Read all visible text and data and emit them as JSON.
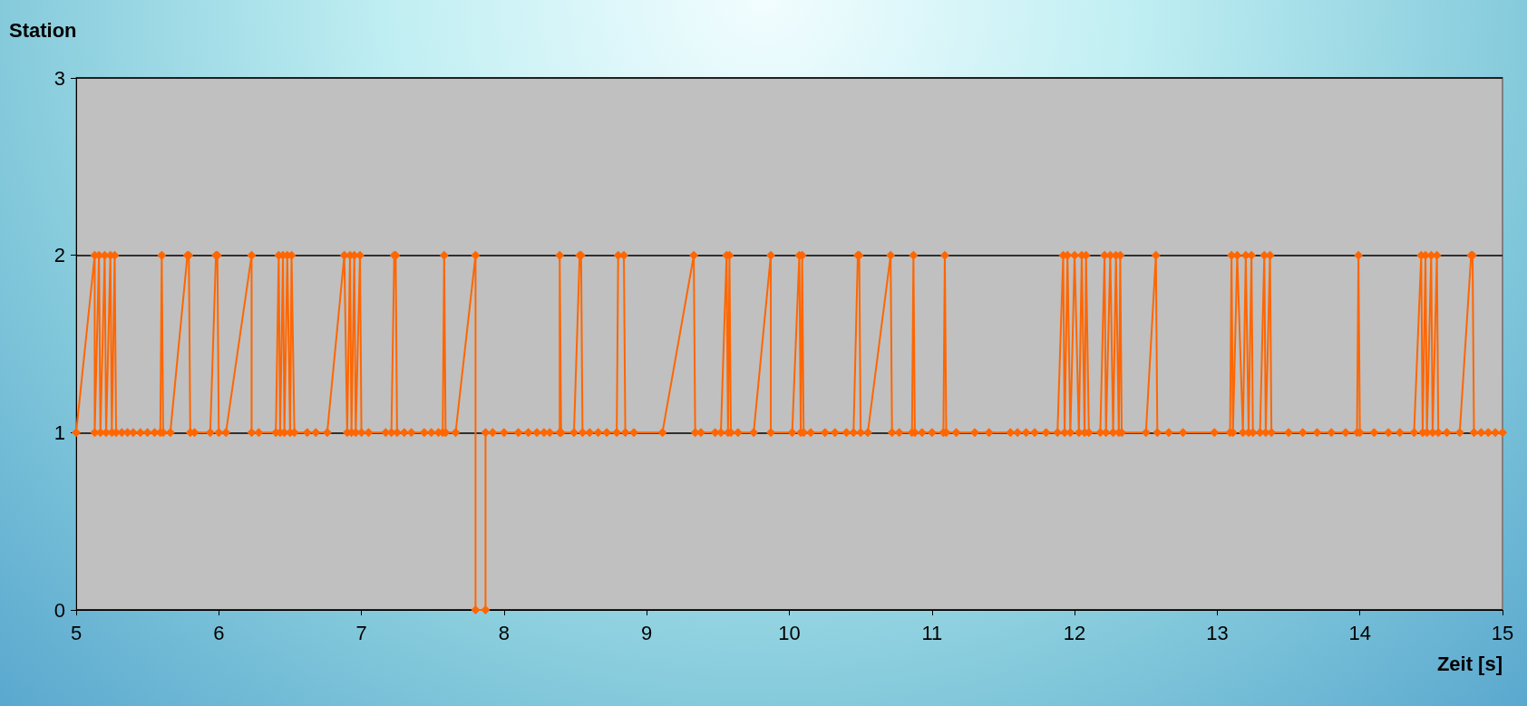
{
  "chart_data": {
    "type": "line",
    "xlabel": "Zeit [s]",
    "ylabel": "Station",
    "color": "#ff6600",
    "marker": "diamond",
    "grid": "y",
    "xlim": [
      5,
      15
    ],
    "xticks": [
      5,
      6,
      7,
      8,
      9,
      10,
      11,
      12,
      13,
      14,
      15
    ],
    "ylim": [
      0,
      3
    ],
    "yticks": [
      0,
      1,
      2,
      3
    ],
    "x": [
      5.0,
      5.13,
      5.13,
      5.16,
      5.17,
      5.2,
      5.21,
      5.24,
      5.25,
      5.27,
      5.28,
      5.32,
      5.36,
      5.4,
      5.45,
      5.5,
      5.55,
      5.59,
      5.6,
      5.61,
      5.66,
      5.78,
      5.79,
      5.8,
      5.83,
      5.94,
      5.98,
      5.99,
      6.0,
      6.05,
      6.23,
      6.23,
      6.28,
      6.4,
      6.42,
      6.43,
      6.45,
      6.46,
      6.48,
      6.5,
      6.51,
      6.53,
      6.62,
      6.68,
      6.76,
      6.88,
      6.9,
      6.92,
      6.93,
      6.95,
      6.96,
      6.99,
      7.0,
      7.05,
      7.17,
      7.21,
      7.23,
      7.24,
      7.25,
      7.3,
      7.35,
      7.44,
      7.49,
      7.54,
      7.57,
      7.58,
      7.59,
      7.66,
      7.8,
      7.8,
      7.87,
      7.87,
      7.92,
      8.0,
      8.1,
      8.17,
      8.23,
      8.28,
      8.32,
      8.39,
      8.39,
      8.4,
      8.49,
      8.53,
      8.54,
      8.55,
      8.6,
      8.66,
      8.72,
      8.79,
      8.8,
      8.84,
      8.85,
      8.91,
      9.11,
      9.33,
      9.34,
      9.38,
      9.48,
      9.52,
      9.56,
      9.57,
      9.58,
      9.59,
      9.64,
      9.75,
      9.87,
      9.87,
      10.02,
      10.07,
      10.08,
      10.09,
      10.1,
      10.15,
      10.25,
      10.32,
      10.4,
      10.45,
      10.48,
      10.49,
      10.5,
      10.55,
      10.71,
      10.72,
      10.77,
      10.86,
      10.87,
      10.88,
      10.93,
      11.0,
      11.08,
      11.09,
      11.1,
      11.17,
      11.3,
      11.4,
      11.55,
      11.6,
      11.66,
      11.72,
      11.8,
      11.88,
      11.92,
      11.93,
      11.95,
      11.97,
      12.0,
      12.03,
      12.05,
      12.07,
      12.08,
      12.1,
      12.18,
      12.21,
      12.22,
      12.25,
      12.27,
      12.29,
      12.31,
      12.32,
      12.33,
      12.5,
      12.57,
      12.58,
      12.66,
      12.76,
      12.98,
      13.09,
      13.1,
      13.11,
      13.14,
      13.18,
      13.2,
      13.22,
      13.24,
      13.25,
      13.3,
      13.33,
      13.34,
      13.37,
      13.38,
      13.5,
      13.6,
      13.7,
      13.8,
      13.9,
      13.98,
      13.99,
      14.0,
      14.1,
      14.2,
      14.28,
      14.38,
      14.43,
      14.44,
      14.46,
      14.47,
      14.5,
      14.51,
      14.54,
      14.55,
      14.61,
      14.7,
      14.78,
      14.79,
      14.8,
      14.85,
      14.9,
      14.95,
      15.0
    ],
    "values": [
      1,
      2,
      1,
      2,
      1,
      2,
      1,
      2,
      1,
      2,
      1,
      1,
      1,
      1,
      1,
      1,
      1,
      1,
      2,
      1,
      1,
      2,
      2,
      1,
      1,
      1,
      2,
      2,
      1,
      1,
      2,
      1,
      1,
      1,
      2,
      1,
      2,
      1,
      2,
      1,
      2,
      1,
      1,
      1,
      1,
      2,
      1,
      2,
      1,
      2,
      1,
      2,
      1,
      1,
      1,
      1,
      2,
      2,
      1,
      1,
      1,
      1,
      1,
      1,
      1,
      2,
      1,
      1,
      2,
      0,
      0,
      1,
      1,
      1,
      1,
      1,
      1,
      1,
      1,
      1,
      2,
      1,
      1,
      2,
      2,
      1,
      1,
      1,
      1,
      1,
      2,
      2,
      1,
      1,
      1,
      2,
      1,
      1,
      1,
      1,
      2,
      1,
      2,
      1,
      1,
      1,
      2,
      1,
      1,
      2,
      1,
      2,
      1,
      1,
      1,
      1,
      1,
      1,
      2,
      2,
      1,
      1,
      2,
      1,
      1,
      1,
      2,
      1,
      1,
      1,
      1,
      2,
      1,
      1,
      1,
      1,
      1,
      1,
      1,
      1,
      1,
      1,
      2,
      1,
      2,
      1,
      2,
      1,
      2,
      1,
      2,
      1,
      1,
      2,
      1,
      2,
      1,
      2,
      1,
      2,
      1,
      1,
      2,
      1,
      1,
      1,
      1,
      1,
      2,
      1,
      2,
      1,
      2,
      1,
      2,
      1,
      1,
      2,
      1,
      2,
      1,
      1,
      1,
      1,
      1,
      1,
      1,
      2,
      1,
      1,
      1,
      1,
      1,
      2,
      1,
      2,
      1,
      2,
      1,
      2,
      1,
      1,
      1,
      2,
      2,
      1,
      1,
      1,
      1,
      1
    ]
  }
}
